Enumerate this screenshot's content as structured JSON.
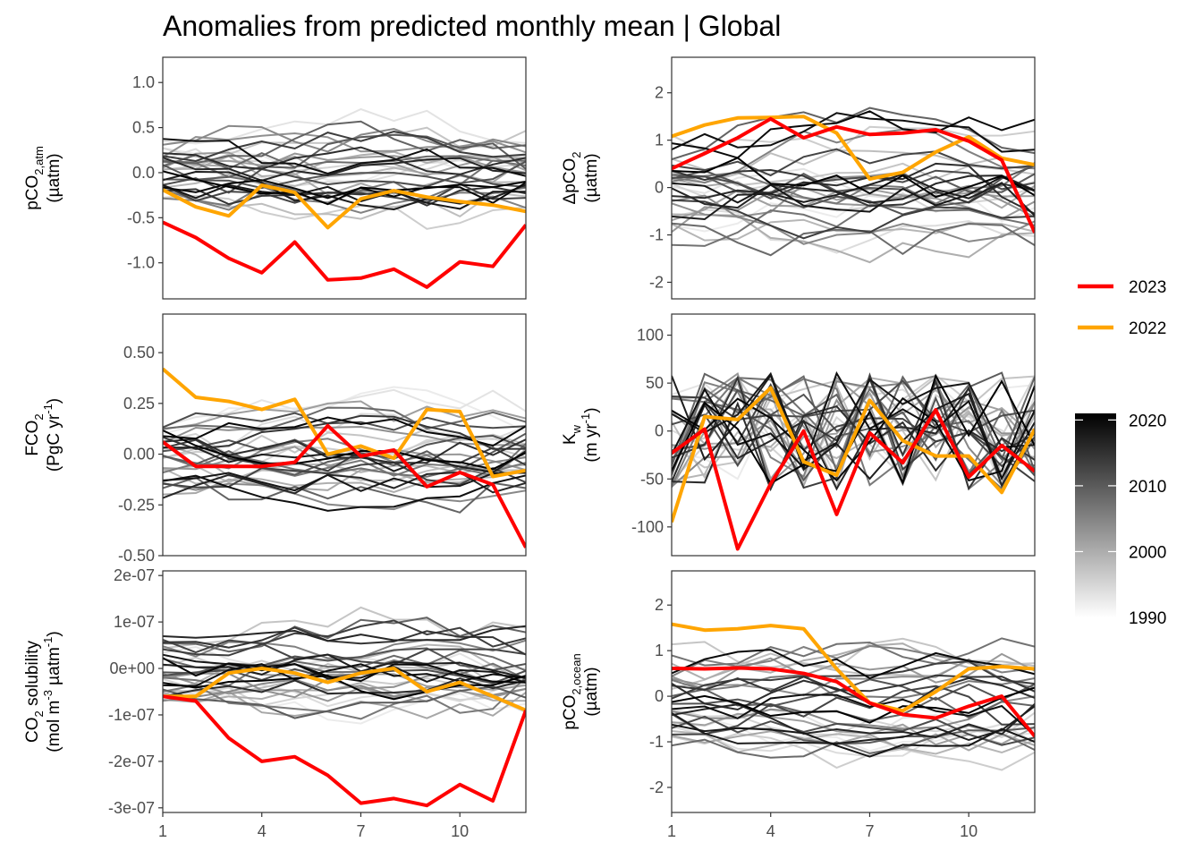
{
  "title": "Anomalies from predicted monthly mean | Global",
  "legend": {
    "highlight": [
      {
        "label": "2023",
        "color": "#ff0000"
      },
      {
        "label": "2022",
        "color": "#ffa500"
      }
    ],
    "colorbar": {
      "ticks": [
        "2020",
        "2010",
        "2000",
        "1990"
      ],
      "range": [
        1990,
        2021
      ],
      "low_color": "#ffffff",
      "high_color": "#000000"
    }
  },
  "chart_data": [
    {
      "type": "line",
      "panel": "pco2-atm",
      "ylabel": [
        "pCO2,atm",
        "(µatm)"
      ],
      "xlim": [
        1,
        12
      ],
      "ylim": [
        -1.4,
        1.28
      ],
      "x_ticks": [
        "1",
        "4",
        "7",
        "10"
      ],
      "y_ticks": [
        {
          "v": 1.0,
          "label": "1.0"
        },
        {
          "v": 0.5,
          "label": "0.5"
        },
        {
          "v": 0.0,
          "label": "0.0"
        },
        {
          "v": -0.5,
          "label": "-0.5"
        },
        {
          "v": -1.0,
          "label": "-1.0"
        }
      ],
      "series": [
        {
          "name": "2023",
          "values": [
            -0.55,
            -0.72,
            -0.95,
            -1.11,
            -0.77,
            -1.19,
            -1.17,
            -1.07,
            -1.27,
            -0.99,
            -1.04,
            -0.58
          ]
        },
        {
          "name": "2022",
          "values": [
            -0.19,
            -0.38,
            -0.48,
            -0.14,
            -0.22,
            -0.61,
            -0.29,
            -0.2,
            -0.27,
            -0.32,
            -0.36,
            -0.43
          ]
        }
      ],
      "background": {
        "amp": 0.4
      }
    },
    {
      "type": "line",
      "panel": "delta-pco2",
      "ylabel": [
        "ΔpCO2",
        "(µatm)"
      ],
      "xlim": [
        1,
        12
      ],
      "ylim": [
        -2.35,
        2.75
      ],
      "x_ticks": [
        "1",
        "4",
        "7",
        "10"
      ],
      "y_ticks": [
        {
          "v": 2,
          "label": "2"
        },
        {
          "v": 1,
          "label": "1"
        },
        {
          "v": 0,
          "label": "0"
        },
        {
          "v": -1,
          "label": "-1"
        },
        {
          "v": -2,
          "label": "-2"
        }
      ],
      "series": [
        {
          "name": "2023",
          "values": [
            0.4,
            0.72,
            1.05,
            1.45,
            1.05,
            1.28,
            1.12,
            1.15,
            1.22,
            0.98,
            0.58,
            -0.95
          ]
        },
        {
          "name": "2022",
          "values": [
            1.08,
            1.32,
            1.47,
            1.48,
            1.5,
            1.15,
            0.18,
            0.32,
            0.75,
            1.07,
            0.62,
            0.48
          ]
        }
      ],
      "background": {
        "amp": 0.9
      }
    },
    {
      "type": "line",
      "panel": "fco2",
      "ylabel": [
        "FCO2",
        "(PgC yr-1)"
      ],
      "xlim": [
        1,
        12
      ],
      "ylim": [
        -0.5,
        0.69
      ],
      "x_ticks": [
        "1",
        "4",
        "7",
        "10"
      ],
      "y_ticks": [
        {
          "v": 0.5,
          "label": "0.50"
        },
        {
          "v": 0.25,
          "label": "0.25"
        },
        {
          "v": 0.0,
          "label": "0.00"
        },
        {
          "v": -0.25,
          "label": "-0.25"
        },
        {
          "v": -0.5,
          "label": "-0.50"
        }
      ],
      "series": [
        {
          "name": "2023",
          "values": [
            0.06,
            -0.06,
            -0.06,
            -0.06,
            -0.04,
            0.14,
            -0.01,
            0.02,
            -0.16,
            -0.09,
            -0.15,
            -0.46
          ]
        },
        {
          "name": "2022",
          "values": [
            0.42,
            0.28,
            0.26,
            0.22,
            0.27,
            0.0,
            0.04,
            -0.02,
            0.22,
            0.21,
            -0.11,
            -0.08
          ]
        }
      ],
      "background": {
        "amp": 0.18
      }
    },
    {
      "type": "line",
      "panel": "kw",
      "ylabel": [
        "Kw",
        "(m yr-1)"
      ],
      "xlim": [
        1,
        12
      ],
      "ylim": [
        -130,
        122
      ],
      "x_ticks": [
        "1",
        "4",
        "7",
        "10"
      ],
      "y_ticks": [
        {
          "v": 100,
          "label": "100"
        },
        {
          "v": 50,
          "label": "50"
        },
        {
          "v": 0,
          "label": "0"
        },
        {
          "v": -50,
          "label": "-50"
        },
        {
          "v": -100,
          "label": "-100"
        }
      ],
      "series": [
        {
          "name": "2023",
          "values": [
            -23,
            2,
            -123,
            -55,
            0,
            -87,
            -2,
            -33,
            22,
            -48,
            -15,
            -42
          ]
        },
        {
          "name": "2022",
          "values": [
            -95,
            15,
            12,
            45,
            -32,
            -46,
            32,
            -10,
            -26,
            -26,
            -64,
            2
          ]
        }
      ],
      "background": {
        "amp": 38,
        "noisy": true
      }
    },
    {
      "type": "line",
      "panel": "co2-solubility",
      "ylabel": [
        "CO2 solubility",
        "(mol m-3 µatm-1)"
      ],
      "xlim": [
        1,
        12
      ],
      "ylim": [
        -3.1e-07,
        2.1e-07
      ],
      "x_ticks": [
        "1",
        "4",
        "7",
        "10"
      ],
      "y_ticks": [
        {
          "v": 2e-07,
          "label": "2e-07"
        },
        {
          "v": 1e-07,
          "label": "1e-07"
        },
        {
          "v": 0,
          "label": "0e+00"
        },
        {
          "v": -1e-07,
          "label": "-1e-07"
        },
        {
          "v": -2e-07,
          "label": "-2e-07"
        },
        {
          "v": -3e-07,
          "label": "-3e-07"
        }
      ],
      "series": [
        {
          "name": "2023",
          "values": [
            -6e-08,
            -7e-08,
            -1.5e-07,
            -2e-07,
            -1.9e-07,
            -2.3e-07,
            -2.9e-07,
            -2.8e-07,
            -2.95e-07,
            -2.5e-07,
            -2.85e-07,
            -9e-08
          ]
        },
        {
          "name": "2022",
          "values": [
            -6e-08,
            -6e-08,
            -1e-08,
            0,
            -1e-08,
            -3e-08,
            -1e-08,
            0,
            -5e-08,
            -3e-08,
            -6e-08,
            -9e-08
          ]
        }
      ],
      "background": {
        "amp": 7e-08
      }
    },
    {
      "type": "line",
      "panel": "pco2-ocean",
      "ylabel": [
        "pCO2,ocean",
        "(µatm)"
      ],
      "xlim": [
        1,
        12
      ],
      "ylim": [
        -2.55,
        2.75
      ],
      "x_ticks": [
        "1",
        "4",
        "7",
        "10"
      ],
      "y_ticks": [
        {
          "v": 2,
          "label": "2"
        },
        {
          "v": 1,
          "label": "1"
        },
        {
          "v": 0,
          "label": "0"
        },
        {
          "v": -1,
          "label": "-1"
        },
        {
          "v": -2,
          "label": "-2"
        }
      ],
      "series": [
        {
          "name": "2023",
          "values": [
            0.61,
            0.6,
            0.62,
            0.6,
            0.5,
            0.32,
            -0.15,
            -0.4,
            -0.48,
            -0.22,
            0.0,
            -0.88
          ]
        },
        {
          "name": "2022",
          "values": [
            1.58,
            1.45,
            1.48,
            1.55,
            1.48,
            0.6,
            -0.15,
            -0.32,
            0.1,
            0.6,
            0.65,
            0.6
          ]
        }
      ],
      "background": {
        "amp": 0.9
      }
    }
  ]
}
